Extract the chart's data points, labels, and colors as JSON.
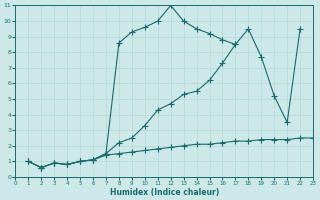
{
  "title": "",
  "xlabel": "Humidex (Indice chaleur)",
  "xlim": [
    -0.5,
    23.5
  ],
  "ylim": [
    -0.5,
    11.5
  ],
  "xticks": [
    0,
    1,
    2,
    3,
    4,
    5,
    6,
    7,
    8,
    9,
    10,
    11,
    12,
    13,
    14,
    15,
    16,
    17,
    18,
    19,
    20,
    21,
    22,
    23
  ],
  "yticks": [
    0,
    1,
    2,
    3,
    4,
    5,
    6,
    7,
    8,
    9,
    10,
    11
  ],
  "bg_color": "#cce8e8",
  "line_color": "#1a6b6b",
  "grid_color": "#b8d8d8",
  "line1_x": [
    1,
    2,
    3,
    4,
    5,
    6,
    7,
    8,
    9,
    10,
    11,
    12,
    13,
    14,
    15,
    16,
    17
  ],
  "line1_y": [
    1,
    0.6,
    0.9,
    0.8,
    1.0,
    1.1,
    1.5,
    8.6,
    9.3,
    9.6,
    10.0,
    11.0,
    10.0,
    9.5,
    9.2,
    8.8,
    8.5
  ],
  "line2_x": [
    1,
    2,
    3,
    4,
    5,
    6,
    7,
    8,
    9,
    10,
    11,
    12,
    13,
    14,
    15,
    16,
    17,
    18,
    19,
    20,
    21,
    22
  ],
  "line2_y": [
    1,
    0.6,
    0.9,
    0.8,
    1.0,
    1.1,
    1.5,
    2.2,
    2.5,
    3.3,
    4.3,
    4.7,
    5.3,
    5.5,
    6.2,
    7.3,
    8.5,
    9.5,
    7.7,
    5.2,
    3.5,
    9.5
  ],
  "line3_x": [
    1,
    2,
    3,
    4,
    5,
    6,
    7,
    8,
    9,
    10,
    11,
    12,
    13,
    14,
    15,
    16,
    17,
    18,
    19,
    20,
    21,
    22,
    23
  ],
  "line3_y": [
    1,
    0.6,
    0.9,
    0.8,
    1.0,
    1.1,
    1.4,
    1.5,
    1.6,
    1.7,
    1.8,
    1.9,
    2.0,
    2.1,
    2.1,
    2.2,
    2.3,
    2.3,
    2.4,
    2.4,
    2.4,
    2.5,
    2.5
  ]
}
